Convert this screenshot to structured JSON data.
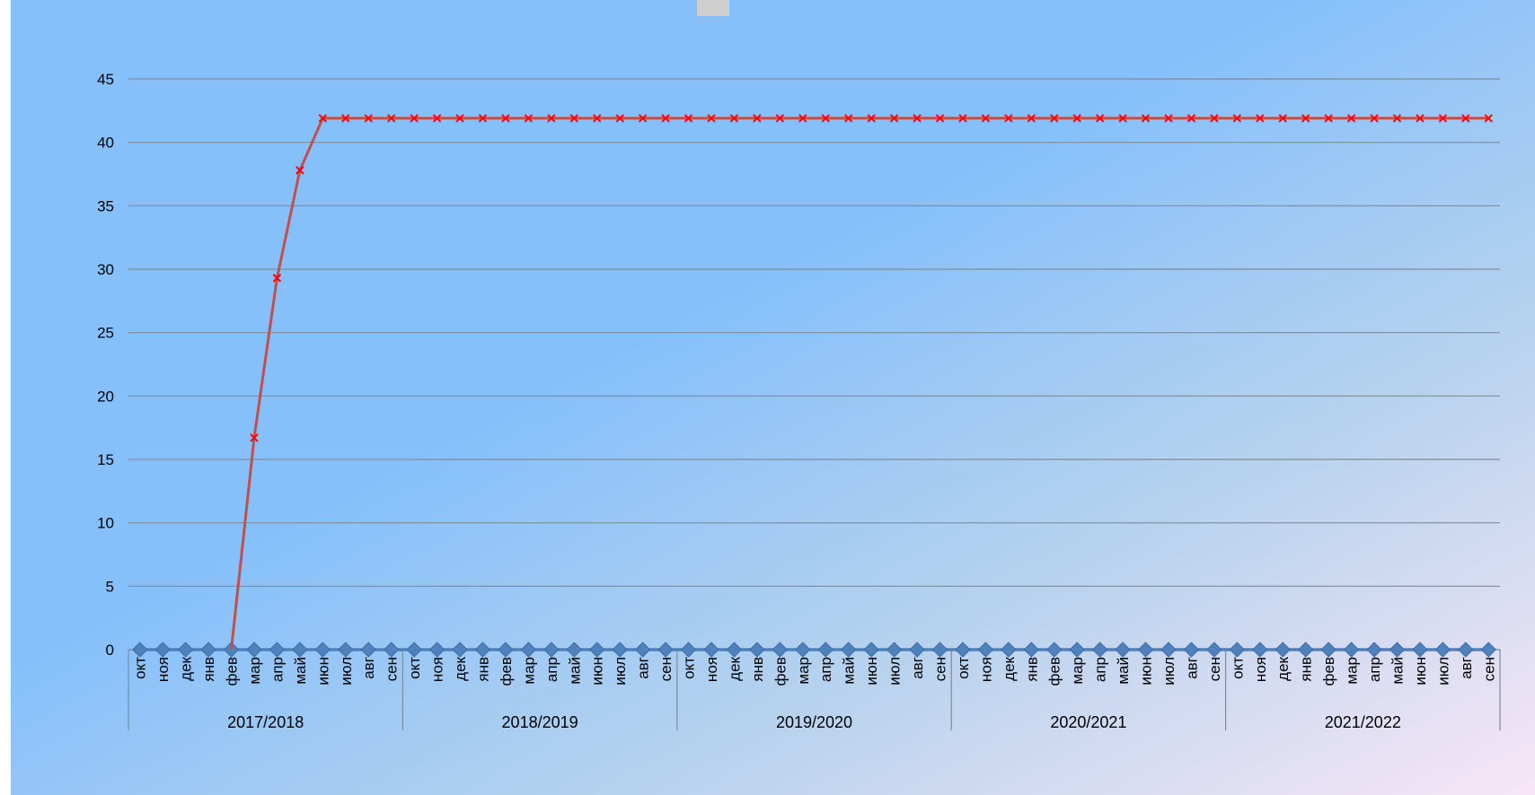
{
  "chart_data": {
    "type": "line",
    "title": "",
    "xlabel": "",
    "ylabel": "",
    "ylim": [
      0,
      45
    ],
    "yticks": [
      "0",
      "5",
      "10",
      "15",
      "20",
      "25",
      "30",
      "35",
      "40",
      "45"
    ],
    "grid": true,
    "legend": "none",
    "months": [
      "окт",
      "ноя",
      "дек",
      "янв",
      "фев",
      "мар",
      "апр",
      "май",
      "июн",
      "июл",
      "авг",
      "сен"
    ],
    "groups": [
      "2017/2018",
      "2018/2019",
      "2019/2020",
      "2020/2021",
      "2021/2022"
    ],
    "series": [
      {
        "color": "#c0504d",
        "marker": "x",
        "values": [
          null,
          null,
          null,
          null,
          0,
          16.7,
          29.3,
          37.8,
          41.9,
          41.9,
          41.9,
          41.9,
          41.9,
          41.9,
          41.9,
          41.9,
          41.9,
          41.9,
          41.9,
          41.9,
          41.9,
          41.9,
          41.9,
          41.9,
          41.9,
          41.9,
          41.9,
          41.9,
          41.9,
          41.9,
          41.9,
          41.9,
          41.9,
          41.9,
          41.9,
          41.9,
          41.9,
          41.9,
          41.9,
          41.9,
          41.9,
          41.9,
          41.9,
          41.9,
          41.9,
          41.9,
          41.9,
          41.9,
          41.9,
          41.9,
          41.9,
          41.9,
          41.9,
          41.9,
          41.9,
          41.9,
          41.9,
          41.9,
          41.9,
          41.9
        ]
      },
      {
        "color": "#4f81bd",
        "marker": "diamond",
        "values": [
          0,
          0,
          0,
          0,
          0,
          0,
          0,
          0,
          0,
          0,
          0,
          0,
          0,
          0,
          0,
          0,
          0,
          0,
          0,
          0,
          0,
          0,
          0,
          0,
          0,
          0,
          0,
          0,
          0,
          0,
          0,
          0,
          0,
          0,
          0,
          0,
          0,
          0,
          0,
          0,
          0,
          0,
          0,
          0,
          0,
          0,
          0,
          0,
          0,
          0,
          0,
          0,
          0,
          0,
          0,
          0,
          0,
          0,
          0,
          0
        ]
      }
    ]
  }
}
